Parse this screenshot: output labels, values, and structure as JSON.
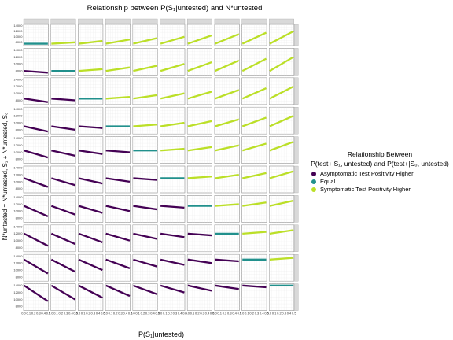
{
  "chart_data": {
    "type": "line",
    "title": "Relationship between P(S₁|untested) and N*untested",
    "xlabel": "P(S₁|untested)",
    "ylabel": "N*untested = N*untested, S₁ + N*untested, S₀",
    "facets": {
      "rows": 10,
      "cols": 10
    },
    "x_range": [
      0.0,
      0.5
    ],
    "x_ticks": [
      "0.0",
      "0.1",
      "0.2",
      "0.3",
      "0.4",
      "0.5"
    ],
    "y_range": [
      6800,
      14500
    ],
    "y_ticks": [
      "8000",
      "10000",
      "12000",
      "14000"
    ],
    "grid": true,
    "legend": {
      "title": "Relationship Between",
      "subtitle": "P(test+|S₁, untested) and P(test+|S₀, untested)",
      "placement": "right",
      "entries": [
        {
          "label": "Asymptomatic Test Positivity Higher",
          "color": "#440154"
        },
        {
          "label": "Equal",
          "color": "#21908C"
        },
        {
          "label": "Symptomatic Test Positivity Higher",
          "color": "#BBDF27"
        }
      ]
    },
    "series_note": "Each panel: line from P=0.0 to P=0.5. Baseline at P=0 rises by row; slope depends on column minus row.",
    "row_baselines": [
      7500,
      8000,
      8500,
      9000,
      10500,
      11000,
      11500,
      12000,
      13000,
      14000
    ],
    "slope_per_unit_diff": 500
  }
}
